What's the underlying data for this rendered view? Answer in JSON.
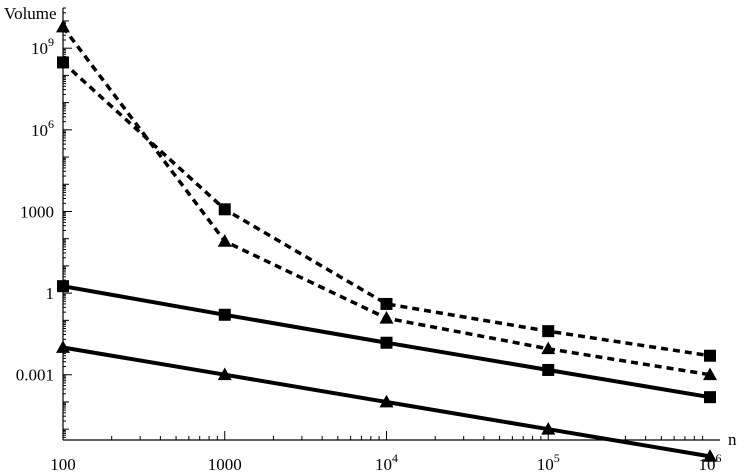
{
  "chart_data": {
    "type": "line",
    "title": "",
    "xlabel": "n",
    "ylabel": "Volume",
    "xscale": "log",
    "yscale": "log",
    "xlim": [
      100,
      1000000
    ],
    "ylim": [
      4e-06,
      30000000000
    ],
    "grid": false,
    "legend": "none",
    "x_ticks": [
      {
        "value": 100,
        "base": "100",
        "exp": ""
      },
      {
        "value": 1000,
        "base": "1000",
        "exp": ""
      },
      {
        "value": 10000,
        "base": "10",
        "exp": "4"
      },
      {
        "value": 100000,
        "base": "10",
        "exp": "5"
      },
      {
        "value": 1000000,
        "base": "10",
        "exp": "6"
      }
    ],
    "y_ticks": [
      {
        "value": 0.001,
        "base": "0.001",
        "exp": ""
      },
      {
        "value": 1,
        "base": "1",
        "exp": ""
      },
      {
        "value": 1000,
        "base": "1000",
        "exp": ""
      },
      {
        "value": 1000000,
        "base": "10",
        "exp": "6"
      },
      {
        "value": 1000000000,
        "base": "10",
        "exp": "9"
      }
    ],
    "series": [
      {
        "style": "dashed",
        "marker": "triangle",
        "x": [
          100,
          1000,
          10000,
          100000,
          1000000
        ],
        "y": [
          6000000000,
          80,
          0.12,
          0.009,
          0.001
        ]
      },
      {
        "style": "dashed",
        "marker": "square",
        "x": [
          100,
          1000,
          10000,
          100000,
          1000000
        ],
        "y": [
          300000000,
          1200,
          0.4,
          0.04,
          0.005
        ]
      },
      {
        "style": "solid",
        "marker": "square",
        "x": [
          100,
          1000,
          10000,
          100000,
          1000000
        ],
        "y": [
          1.8,
          0.16,
          0.015,
          0.0015,
          0.00015
        ]
      },
      {
        "style": "solid",
        "marker": "triangle",
        "x": [
          100,
          1000,
          10000,
          100000,
          1000000
        ],
        "y": [
          0.01,
          0.001,
          0.0001,
          1e-05,
          1e-06
        ]
      }
    ]
  }
}
